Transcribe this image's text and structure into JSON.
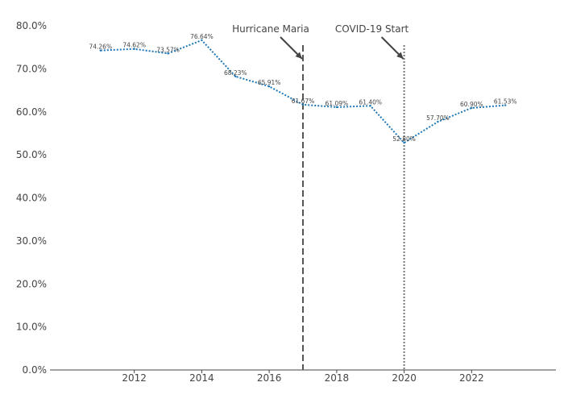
{
  "chart_data": {
    "type": "line",
    "title": "",
    "xlabel": "",
    "ylabel": "",
    "x": [
      2011,
      2012,
      2013,
      2014,
      2015,
      2016,
      2017,
      2018,
      2019,
      2020,
      2021,
      2022,
      2023
    ],
    "series": [
      {
        "values": [
          74.26,
          74.62,
          73.57,
          76.64,
          68.23,
          65.91,
          61.67,
          61.09,
          61.4,
          52.8,
          57.7,
          60.9,
          61.53
        ],
        "labels": [
          "74.26%",
          "74.62%",
          "73.57%",
          "76.64%",
          "68.23%",
          "65.91%",
          "61.67%",
          "61.09%",
          "61.40%",
          "52.80%",
          "57.70%",
          "60.90%",
          "61.53%"
        ],
        "color": "#1f77b4",
        "dash": "dotted"
      }
    ],
    "xlim": [
      2009.5,
      2024.5
    ],
    "ylim": [
      0,
      80
    ],
    "x_ticks": [
      2012,
      2014,
      2016,
      2018,
      2020,
      2022
    ],
    "x_tick_labels": [
      "2012",
      "2014",
      "2016",
      "2018",
      "2020",
      "2022"
    ],
    "y_ticks": [
      0,
      10,
      20,
      30,
      40,
      50,
      60,
      70,
      80
    ],
    "y_tick_labels": [
      "0.0%",
      "10.0%",
      "20.0%",
      "30.0%",
      "40.0%",
      "50.0%",
      "60.0%",
      "70.0%",
      "80.0%"
    ],
    "grid": false,
    "annotations": [
      {
        "text": "Hurricane Maria",
        "x": 2017,
        "line_style": "dashed",
        "line_color": "#555555"
      },
      {
        "text": "COVID-19 Start",
        "x": 2020,
        "line_style": "dotted",
        "line_color": "#777777"
      }
    ]
  }
}
